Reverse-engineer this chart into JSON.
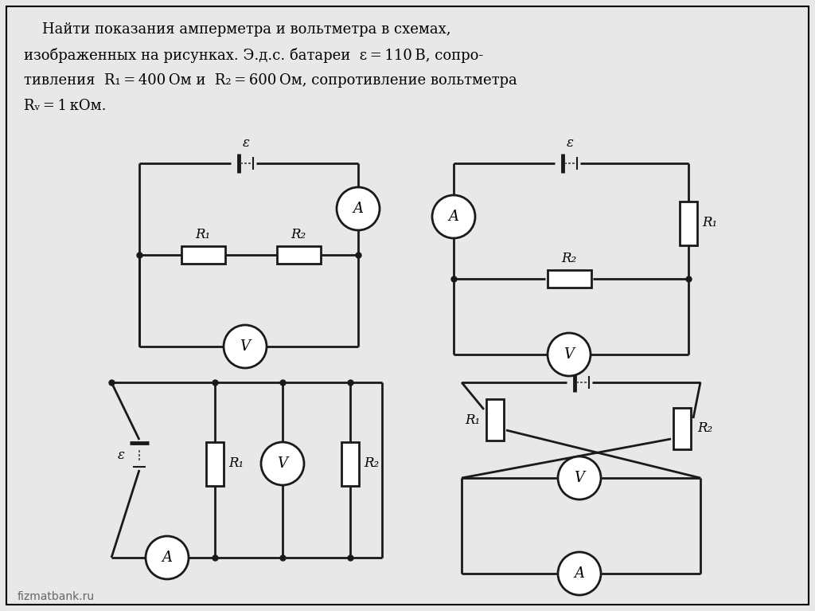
{
  "bg_color": "#e8e8e8",
  "line_color": "#1a1a1a",
  "title_lines": [
    "    Найти показания амперметра и вольтметра в схемах,",
    "изображенных на рисунках. Э.д.с. батареи  ε = 110 В, сопро-",
    "тивления  R₁ = 400 Ом и  R₂ = 600 Ом, сопротивление вольтметра",
    "Rᵥ = 1 кОм."
  ],
  "watermark": "fizmatbank.ru"
}
